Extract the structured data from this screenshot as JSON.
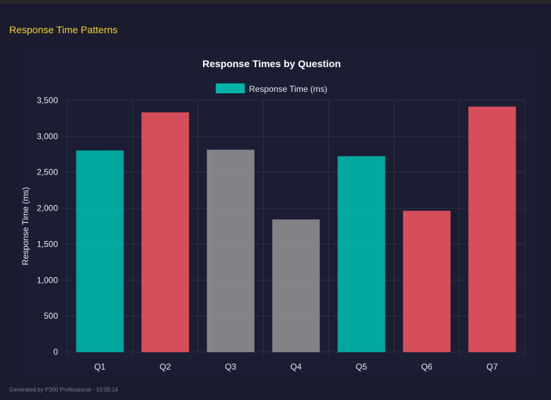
{
  "page": {
    "heading": "Response Time Patterns",
    "footer": "Generated by P300 Professional - 10:05:14"
  },
  "chart_data": {
    "type": "bar",
    "title": "Response Times by Question",
    "legend": [
      {
        "label": "Response Time (ms)",
        "color": "#00b3a6"
      }
    ],
    "legend_placement": "top",
    "ylabel": "Response Time (ms)",
    "xlabel": "",
    "categories": [
      "Q1",
      "Q2",
      "Q3",
      "Q4",
      "Q5",
      "Q6",
      "Q7"
    ],
    "values": [
      2800,
      3330,
      2810,
      1840,
      2720,
      1960,
      3410
    ],
    "colors": [
      "#00b3a6",
      "#e5525c",
      "#8c8b8e",
      "#8c8b8e",
      "#00b3a6",
      "#e5525c",
      "#e5525c"
    ],
    "yticks": [
      0,
      500,
      1000,
      1500,
      2000,
      2500,
      3000,
      3500
    ],
    "ytick_labels": [
      "0",
      "500",
      "1,000",
      "1,500",
      "2,000",
      "2,500",
      "3,000",
      "3,500"
    ],
    "ylim": [
      0,
      3500
    ],
    "grid": true
  }
}
